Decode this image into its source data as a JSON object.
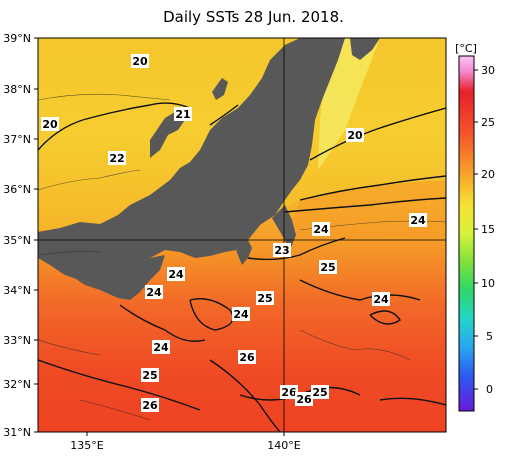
{
  "title": "Daily SSTs 28 Jun. 2018.",
  "latitude_labels": [
    "39°N",
    "38°N",
    "37°N",
    "36°N",
    "35°N",
    "34°N",
    "33°N",
    "32°N",
    "31°N"
  ],
  "longitude_labels": [
    "135°E",
    "140°E"
  ],
  "colorbar": {
    "unit": "[°C]",
    "tick_labels": [
      "30",
      "25",
      "20",
      "15",
      "10",
      "5",
      "0"
    ],
    "range": [
      -2,
      32
    ]
  },
  "contour_labels": [
    "20",
    "21",
    "20",
    "20",
    "22",
    "24",
    "24",
    "23",
    "25",
    "24",
    "24",
    "25",
    "24",
    "24",
    "24",
    "26",
    "25",
    "26",
    "26",
    "26",
    "25"
  ],
  "colors": {
    "land": "#5a5a5a",
    "sea_north": "#f5d431",
    "sea_mid": "#f7a72a",
    "sea_south": "#f3622a",
    "sea_hot": "#ee3e22"
  }
}
